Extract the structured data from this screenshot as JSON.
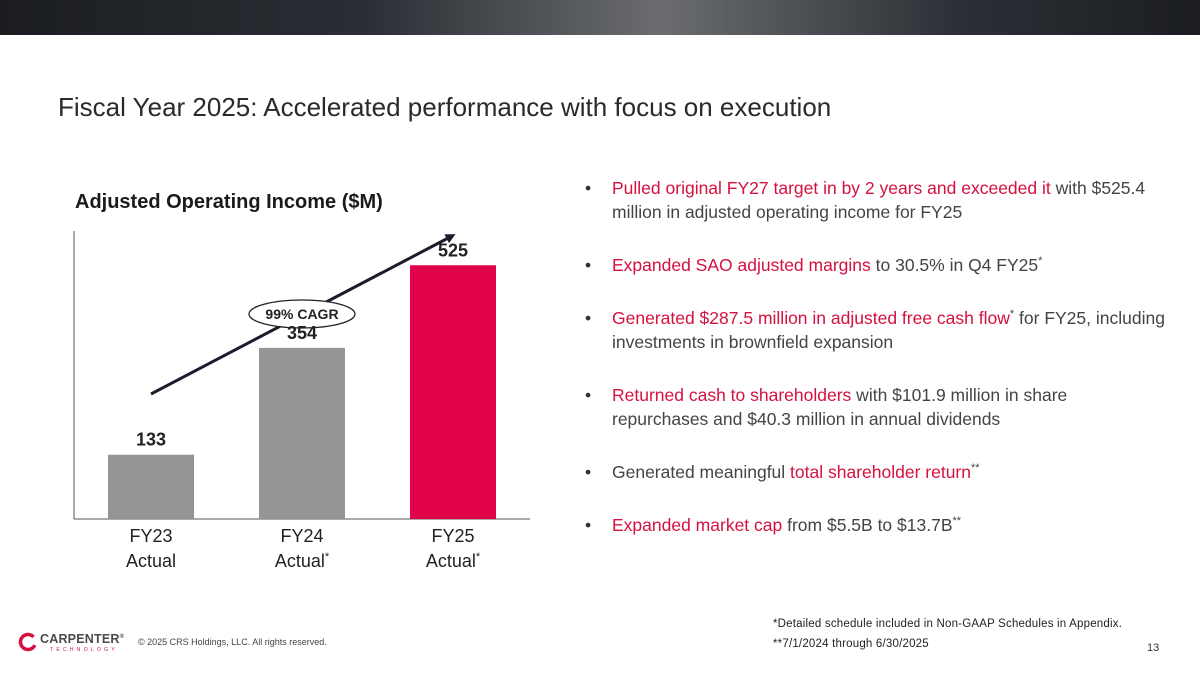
{
  "header": {
    "title": "Fiscal Year 2025: Accelerated performance with focus on execution"
  },
  "colors": {
    "accent": "#d6103f",
    "bar_gray": "#959595",
    "highlight_bar": "#e0034a"
  },
  "chart_data": {
    "type": "bar",
    "title": "Adjusted Operating Income ($M)",
    "categories": [
      {
        "line1": "FY23",
        "line2": "Actual",
        "mark": ""
      },
      {
        "line1": "FY24",
        "line2": "Actual",
        "mark": "*"
      },
      {
        "line1": "FY25",
        "line2": "Actual",
        "mark": "*"
      }
    ],
    "values": [
      133,
      354,
      525
    ],
    "labels": [
      "133",
      "354",
      "525"
    ],
    "bar_colors": [
      "#959595",
      "#959595",
      "#e0034a"
    ],
    "ylim": [
      0,
      600
    ],
    "annotation": "99% CAGR",
    "xlabel": "",
    "ylabel": "",
    "grid": false
  },
  "bullets": [
    {
      "highlight": "Pulled original FY27 target in by 2 years and exceeded it",
      "text": " with $525.4 million in adjusted operating income for FY25"
    },
    {
      "highlight": "Expanded SAO adjusted margins",
      "text": " to 30.5% in Q4 FY25",
      "sup": "*"
    },
    {
      "highlight": "Generated $287.5 million in adjusted free cash flow",
      "sup": "*",
      "text": " for FY25, including investments in brownfield expansion"
    },
    {
      "highlight": "Returned cash to shareholders",
      "text": " with $101.9 million in share repurchases and $40.3 million in annual dividends"
    },
    {
      "pre": "Generated meaningful ",
      "highlight": "total shareholder return",
      "sup": "**"
    },
    {
      "highlight": "Expanded market cap",
      "text": " from $5.5B to $13.7B",
      "sup": "**"
    }
  ],
  "footnotes": {
    "note1": "*Detailed schedule included in Non-GAAP Schedules in Appendix.",
    "note2": "**7/1/2024 through 6/30/2025"
  },
  "footer": {
    "logo_name": "CARPENTER",
    "logo_mark": "®",
    "logo_sub": "TECHNOLOGY",
    "copyright": "© 2025 CRS Holdings, LLC. All rights reserved.",
    "page": "13"
  }
}
